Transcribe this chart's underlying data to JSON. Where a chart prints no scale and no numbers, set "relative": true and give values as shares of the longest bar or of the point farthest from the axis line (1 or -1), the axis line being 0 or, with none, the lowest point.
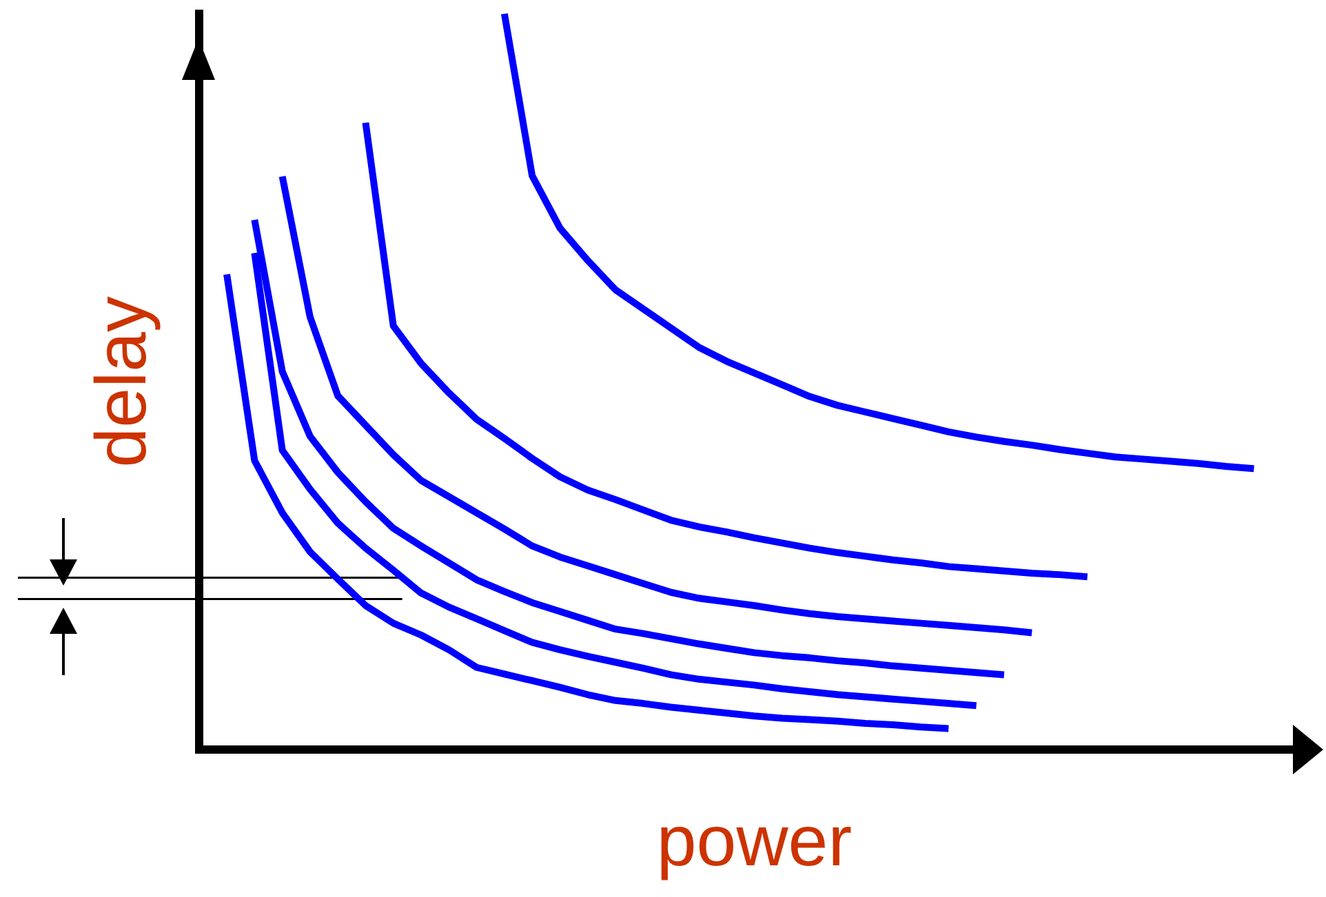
{
  "chart_data": {
    "type": "line",
    "xlabel": "power",
    "ylabel": "delay",
    "relative": true,
    "grid": false,
    "legend": false,
    "marker": "none",
    "line_style": "solid",
    "categories": [
      null,
      null,
      null,
      null,
      null,
      null,
      null,
      null,
      null,
      null,
      null,
      null,
      null,
      null,
      null,
      null,
      null,
      null,
      null,
      null,
      null,
      null,
      null,
      null,
      null,
      null,
      null,
      null,
      null,
      null,
      null,
      null,
      null,
      null,
      null,
      null,
      null,
      null,
      null,
      null,
      null
    ],
    "series": [
      {
        "color": "#0000ff",
        "values": [
          null,
          0.646,
          0.393,
          0.322,
          0.269,
          0.232,
          0.196,
          0.172,
          0.156,
          0.136,
          0.112,
          0.103,
          0.094,
          0.085,
          0.075,
          0.067,
          0.063,
          0.058,
          0.054,
          0.05,
          0.046,
          0.043,
          0.041,
          0.039,
          0.036,
          0.034,
          0.031,
          0.029,
          null,
          null,
          null,
          null,
          null,
          null,
          null,
          null,
          null,
          null,
          null,
          null,
          null
        ]
      },
      {
        "color": "#0000ff",
        "values": [
          null,
          null,
          0.675,
          0.407,
          0.354,
          0.308,
          0.274,
          0.244,
          0.213,
          0.194,
          0.178,
          0.162,
          0.146,
          0.136,
          0.127,
          0.119,
          0.111,
          0.102,
          0.096,
          0.092,
          0.088,
          0.083,
          0.079,
          0.075,
          0.072,
          0.069,
          0.066,
          0.063,
          0.06,
          null,
          null,
          null,
          null,
          null,
          null,
          null,
          null,
          null,
          null,
          null,
          null
        ]
      },
      {
        "color": "#0000ff",
        "values": [
          null,
          null,
          0.72,
          0.514,
          0.426,
          0.377,
          0.337,
          0.301,
          0.277,
          0.254,
          0.231,
          0.215,
          0.2,
          0.188,
          0.176,
          0.164,
          0.158,
          0.151,
          0.144,
          0.138,
          0.132,
          0.128,
          0.125,
          0.121,
          0.118,
          0.114,
          0.111,
          0.108,
          0.105,
          0.102,
          null,
          null,
          null,
          null,
          null,
          null,
          null,
          null,
          null,
          null,
          null
        ]
      },
      {
        "color": "#0000ff",
        "values": [
          null,
          null,
          null,
          0.779,
          0.588,
          0.481,
          0.441,
          0.401,
          0.366,
          0.344,
          0.322,
          0.3,
          0.277,
          0.262,
          0.25,
          0.238,
          0.226,
          0.214,
          0.206,
          0.201,
          0.196,
          0.19,
          0.185,
          0.181,
          0.178,
          0.175,
          0.172,
          0.169,
          0.166,
          0.163,
          0.159,
          null,
          null,
          null,
          null,
          null,
          null,
          null,
          null,
          null,
          null
        ]
      },
      {
        "color": "#0000ff",
        "values": [
          null,
          null,
          null,
          null,
          null,
          null,
          0.852,
          0.576,
          0.525,
          0.485,
          0.449,
          0.423,
          0.396,
          0.371,
          0.353,
          0.34,
          0.326,
          0.312,
          0.303,
          0.296,
          0.288,
          0.281,
          0.274,
          0.268,
          0.263,
          0.258,
          0.254,
          0.249,
          0.246,
          0.243,
          0.24,
          0.238,
          0.235,
          null,
          null,
          null,
          null,
          null,
          null,
          null,
          null
        ]
      },
      {
        "color": "#0000ff",
        "values": [
          null,
          null,
          null,
          null,
          null,
          null,
          null,
          null,
          null,
          null,
          null,
          1,
          0.78,
          0.709,
          0.665,
          0.625,
          0.599,
          0.573,
          0.547,
          0.528,
          0.512,
          0.496,
          0.48,
          0.468,
          0.459,
          0.45,
          0.441,
          0.432,
          0.425,
          0.419,
          0.414,
          0.408,
          0.403,
          0.398,
          0.395,
          0.392,
          0.389,
          0.385,
          0.382,
          null,
          null
        ]
      }
    ],
    "ref_lines": [
      {
        "axis": "y",
        "value": 0.234,
        "color": "#000000"
      },
      {
        "axis": "y",
        "value": 0.205,
        "color": "#000000"
      }
    ]
  }
}
